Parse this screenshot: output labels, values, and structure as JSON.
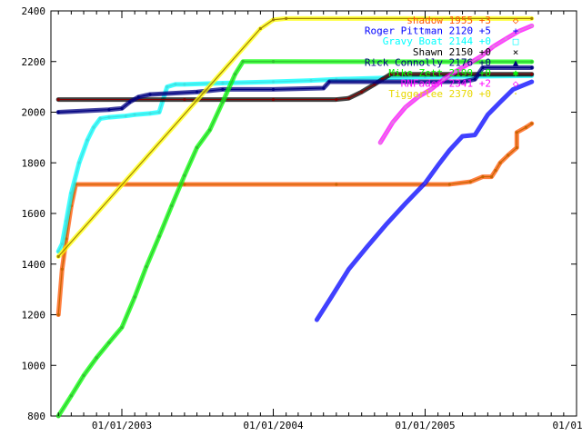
{
  "chart_data": {
    "type": "line",
    "title": "",
    "xlabel": "",
    "ylabel": "",
    "xlim": [
      "2002-07-14",
      "2006-01-01"
    ],
    "ylim": [
      800,
      2400
    ],
    "grid": false,
    "legend_position": "top-right",
    "y_ticks": [
      800,
      1000,
      1200,
      1400,
      1600,
      1800,
      2000,
      2200,
      2400
    ],
    "x_ticks": [
      {
        "date": "2003-01-01",
        "label": "01/01/2003"
      },
      {
        "date": "2004-01-01",
        "label": "01/01/2004"
      },
      {
        "date": "2005-01-01",
        "label": "01/01/2005"
      },
      {
        "date": "2006-01-01",
        "label": "01/01/20"
      }
    ],
    "series": [
      {
        "name": "shadow 1955 +3",
        "marker": "◇",
        "color": "#ff5500",
        "line_color": "#c86400",
        "points": [
          [
            "2002-08-01",
            1200
          ],
          [
            "2002-08-10",
            1380
          ],
          [
            "2002-08-20",
            1500
          ],
          [
            "2002-09-01",
            1630
          ],
          [
            "2002-09-12",
            1715
          ],
          [
            "2003-06-01",
            1715
          ],
          [
            "2004-06-01",
            1715
          ],
          [
            "2005-03-01",
            1715
          ],
          [
            "2005-04-20",
            1725
          ],
          [
            "2005-05-20",
            1745
          ],
          [
            "2005-06-10",
            1745
          ],
          [
            "2005-06-20",
            1770
          ],
          [
            "2005-07-01",
            1800
          ],
          [
            "2005-07-20",
            1830
          ],
          [
            "2005-08-10",
            1860
          ],
          [
            "2005-08-10",
            1920
          ],
          [
            "2005-09-01",
            1940
          ],
          [
            "2005-09-15",
            1955
          ]
        ]
      },
      {
        "name": "Roger Pittman 2120 +5",
        "marker": "+",
        "color": "#0000ff",
        "line_color": "#4040ff",
        "points": [
          [
            "2004-04-15",
            1180
          ],
          [
            "2004-05-20",
            1270
          ],
          [
            "2004-07-01",
            1380
          ],
          [
            "2004-08-15",
            1470
          ],
          [
            "2004-10-01",
            1560
          ],
          [
            "2004-11-15",
            1640
          ],
          [
            "2005-01-01",
            1720
          ],
          [
            "2005-02-01",
            1790
          ],
          [
            "2005-03-01",
            1850
          ],
          [
            "2005-04-01",
            1905
          ],
          [
            "2005-05-01",
            1910
          ],
          [
            "2005-06-01",
            1990
          ],
          [
            "2005-07-01",
            2040
          ],
          [
            "2005-08-01",
            2090
          ],
          [
            "2005-09-15",
            2120
          ]
        ]
      },
      {
        "name": "Gravy Boat 2144 +0",
        "marker": "□",
        "color": "#00ffff",
        "line_color": "#40e0e0",
        "points": [
          [
            "2002-08-01",
            1450
          ],
          [
            "2002-08-10",
            1480
          ],
          [
            "2002-08-20",
            1570
          ],
          [
            "2002-09-01",
            1680
          ],
          [
            "2002-09-20",
            1800
          ],
          [
            "2002-10-10",
            1890
          ],
          [
            "2002-10-25",
            1940
          ],
          [
            "2002-11-10",
            1975
          ],
          [
            "2002-12-01",
            1980
          ],
          [
            "2003-01-10",
            1985
          ],
          [
            "2003-02-01",
            1990
          ],
          [
            "2003-03-10",
            1995
          ],
          [
            "2003-04-01",
            2000
          ],
          [
            "2003-04-20",
            2100
          ],
          [
            "2003-05-10",
            2110
          ],
          [
            "2003-06-01",
            2110
          ],
          [
            "2003-09-01",
            2115
          ],
          [
            "2004-01-01",
            2120
          ],
          [
            "2004-04-01",
            2125
          ],
          [
            "2004-06-01",
            2130
          ],
          [
            "2005-01-01",
            2140
          ],
          [
            "2005-09-15",
            2144
          ]
        ]
      },
      {
        "name": "Shawn 2150 +0",
        "marker": "×",
        "color": "#000000",
        "line_color": "#800000",
        "points": [
          [
            "2002-08-01",
            2050
          ],
          [
            "2003-06-01",
            2050
          ],
          [
            "2004-01-01",
            2050
          ],
          [
            "2004-06-01",
            2050
          ],
          [
            "2004-07-01",
            2055
          ],
          [
            "2004-08-01",
            2080
          ],
          [
            "2004-09-01",
            2110
          ],
          [
            "2004-09-20",
            2130
          ],
          [
            "2004-10-10",
            2150
          ],
          [
            "2005-09-15",
            2150
          ]
        ]
      },
      {
        "name": "Rick Connolly 2176 +0",
        "marker": "▲",
        "color": "#000080",
        "line_color": "#000080",
        "points": [
          [
            "2002-08-01",
            2000
          ],
          [
            "2002-12-01",
            2010
          ],
          [
            "2003-01-01",
            2015
          ],
          [
            "2003-01-20",
            2040
          ],
          [
            "2003-02-10",
            2060
          ],
          [
            "2003-03-10",
            2070
          ],
          [
            "2003-07-01",
            2080
          ],
          [
            "2003-09-01",
            2090
          ],
          [
            "2004-01-01",
            2090
          ],
          [
            "2004-05-01",
            2095
          ],
          [
            "2004-05-15",
            2120
          ],
          [
            "2005-04-01",
            2120
          ],
          [
            "2005-05-01",
            2130
          ],
          [
            "2005-05-20",
            2176
          ],
          [
            "2005-09-15",
            2176
          ]
        ]
      },
      {
        "name": "Mike Zett 2199 +0",
        "marker": "✱",
        "color": "#00ff00",
        "line_color": "#30c030",
        "points": [
          [
            "2002-08-01",
            800
          ],
          [
            "2002-09-01",
            880
          ],
          [
            "2002-10-01",
            960
          ],
          [
            "2002-11-01",
            1030
          ],
          [
            "2002-12-01",
            1090
          ],
          [
            "2003-01-01",
            1150
          ],
          [
            "2003-02-01",
            1270
          ],
          [
            "2003-03-01",
            1390
          ],
          [
            "2003-04-01",
            1510
          ],
          [
            "2003-05-01",
            1630
          ],
          [
            "2003-06-01",
            1750
          ],
          [
            "2003-07-01",
            1860
          ],
          [
            "2003-08-01",
            1930
          ],
          [
            "2003-09-01",
            2040
          ],
          [
            "2003-10-01",
            2150
          ],
          [
            "2003-10-20",
            2200
          ],
          [
            "2004-01-01",
            2200
          ],
          [
            "2005-09-15",
            2199
          ]
        ]
      },
      {
        "name": "RNFaden 2341 +2",
        "marker": "◇",
        "color": "#ff00ff",
        "line_color": "#e080e0",
        "points": [
          [
            "2004-09-15",
            1880
          ],
          [
            "2004-10-15",
            1960
          ],
          [
            "2004-11-15",
            2020
          ],
          [
            "2004-12-15",
            2060
          ],
          [
            "2005-01-15",
            2090
          ],
          [
            "2005-02-15",
            2130
          ],
          [
            "2005-03-15",
            2160
          ],
          [
            "2005-04-15",
            2190
          ],
          [
            "2005-05-15",
            2220
          ],
          [
            "2005-06-15",
            2260
          ],
          [
            "2005-07-15",
            2290
          ],
          [
            "2005-08-15",
            2320
          ],
          [
            "2005-09-15",
            2341
          ]
        ]
      },
      {
        "name": "Tiggerlee 2370 +0",
        "marker": "·",
        "color": "#ffff00",
        "line_color": "#a08000",
        "points": [
          [
            "2002-08-01",
            1430
          ],
          [
            "2003-12-01",
            2330
          ],
          [
            "2004-01-01",
            2365
          ],
          [
            "2004-02-01",
            2370
          ],
          [
            "2005-09-15",
            2370
          ]
        ]
      }
    ]
  }
}
